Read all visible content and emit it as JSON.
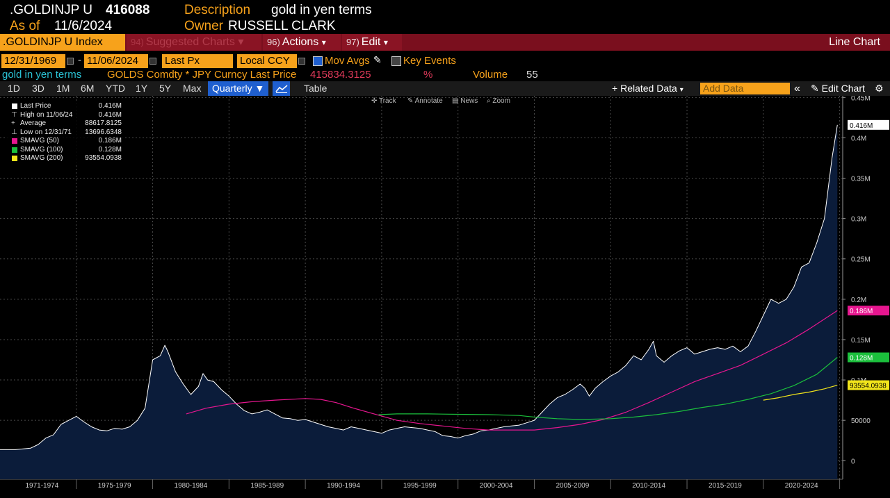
{
  "header": {
    "ticker": ".GOLDINJP U",
    "value": "416088",
    "desc_label": "Description",
    "desc_value": "gold in yen terms",
    "asof_label": "As of",
    "asof_value": "11/6/2024",
    "owner_label": "Owner",
    "owner_value": "RUSSELL CLARK"
  },
  "cmdbar": {
    "security": ".GOLDINJP U Index",
    "suggested_num": "94)",
    "suggested": "Suggested Charts",
    "actions_num": "96)",
    "actions": "Actions",
    "edit_num": "97)",
    "edit": "Edit",
    "chart_type": "Line Chart"
  },
  "settings": {
    "start_date": "12/31/1969",
    "end_date": "11/06/2024",
    "field": "Last Px",
    "currency": "Local CCY",
    "mov_avgs": "Mov Avgs",
    "key_events": "Key Events"
  },
  "secrow": {
    "name": "gold in yen terms",
    "formula": "GOLDS Comdty * JPY Curncy Last Price",
    "last_price": "415834.3125",
    "pct": "%",
    "volume_label": "Volume",
    "volume": "55"
  },
  "toolbar": {
    "periods": [
      "1D",
      "3D",
      "1M",
      "6M",
      "YTD",
      "1Y",
      "5Y",
      "Max"
    ],
    "frequency": "Quarterly",
    "table": "Table",
    "related": "Related Data",
    "add_data": "Add Data",
    "edit_chart": "Edit Chart",
    "tools": [
      "Track",
      "Annotate",
      "News",
      "Zoom"
    ]
  },
  "legend": [
    {
      "label": "Last Price",
      "value": "0.416M",
      "color": "#ffffff"
    },
    {
      "label": "High on 11/06/24",
      "value": "0.416M",
      "color": ""
    },
    {
      "label": "Average",
      "value": "88617.8125",
      "color": ""
    },
    {
      "label": "Low on 12/31/71",
      "value": "13696.6348",
      "color": ""
    },
    {
      "label": "SMAVG (50)",
      "value": "0.186M",
      "color": "#e6168f"
    },
    {
      "label": "SMAVG (100)",
      "value": "0.128M",
      "color": "#1bbf3c"
    },
    {
      "label": "SMAVG (200)",
      "value": "93554.0938",
      "color": "#f2e51b"
    }
  ],
  "chart_data": {
    "type": "area",
    "x_ticks": [
      "1971-1974",
      "1975-1979",
      "1980-1984",
      "1985-1989",
      "1990-1994",
      "1995-1999",
      "2000-2004",
      "2005-2009",
      "2010-2014",
      "2015-2019",
      "2020-2024"
    ],
    "y_ticks": [
      {
        "v": 0,
        "label": "0"
      },
      {
        "v": 50000,
        "label": "50000"
      },
      {
        "v": 100000,
        "label": "0.1M"
      },
      {
        "v": 150000,
        "label": "0.15M"
      },
      {
        "v": 200000,
        "label": "0.2M"
      },
      {
        "v": 250000,
        "label": "0.25M"
      },
      {
        "v": 300000,
        "label": "0.3M"
      },
      {
        "v": 350000,
        "label": "0.35M"
      },
      {
        "v": 400000,
        "label": "0.4M"
      },
      {
        "v": 450000,
        "label": "0.45M"
      }
    ],
    "ylim": [
      -23000,
      452000
    ],
    "xlim": [
      1970.0,
      2025.2
    ],
    "grid": true,
    "series": [
      {
        "name": "Last Price",
        "color": "#ffffff",
        "fill": "#0b1c3a",
        "points": [
          [
            1970.0,
            13700
          ],
          [
            1971.0,
            13700
          ],
          [
            1972.0,
            15500
          ],
          [
            1972.5,
            20000
          ],
          [
            1973.0,
            28000
          ],
          [
            1973.5,
            32000
          ],
          [
            1974.0,
            45000
          ],
          [
            1974.5,
            50000
          ],
          [
            1975.0,
            55000
          ],
          [
            1975.5,
            48000
          ],
          [
            1976.0,
            42000
          ],
          [
            1976.5,
            38000
          ],
          [
            1977.0,
            37000
          ],
          [
            1977.5,
            40000
          ],
          [
            1978.0,
            39000
          ],
          [
            1978.5,
            42000
          ],
          [
            1979.0,
            50000
          ],
          [
            1979.5,
            65000
          ],
          [
            1980.0,
            125000
          ],
          [
            1980.5,
            130000
          ],
          [
            1980.8,
            143000
          ],
          [
            1981.0,
            135000
          ],
          [
            1981.5,
            110000
          ],
          [
            1982.0,
            95000
          ],
          [
            1982.5,
            82000
          ],
          [
            1983.0,
            92000
          ],
          [
            1983.3,
            108000
          ],
          [
            1983.6,
            100000
          ],
          [
            1984.0,
            98000
          ],
          [
            1984.5,
            88000
          ],
          [
            1985.0,
            80000
          ],
          [
            1985.5,
            70000
          ],
          [
            1986.0,
            62000
          ],
          [
            1986.5,
            58000
          ],
          [
            1987.0,
            60000
          ],
          [
            1987.5,
            63000
          ],
          [
            1988.0,
            58000
          ],
          [
            1988.5,
            53000
          ],
          [
            1989.0,
            52000
          ],
          [
            1989.5,
            50000
          ],
          [
            1990.0,
            51000
          ],
          [
            1990.5,
            48000
          ],
          [
            1991.0,
            45000
          ],
          [
            1991.5,
            42000
          ],
          [
            1992.0,
            40000
          ],
          [
            1992.5,
            38000
          ],
          [
            1993.0,
            42000
          ],
          [
            1993.5,
            40000
          ],
          [
            1994.0,
            38000
          ],
          [
            1994.5,
            36000
          ],
          [
            1995.0,
            34000
          ],
          [
            1995.5,
            38000
          ],
          [
            1996.0,
            40000
          ],
          [
            1996.5,
            42000
          ],
          [
            1997.0,
            41000
          ],
          [
            1997.5,
            40000
          ],
          [
            1998.0,
            38000
          ],
          [
            1998.5,
            36000
          ],
          [
            1999.0,
            31000
          ],
          [
            1999.5,
            30000
          ],
          [
            2000.0,
            28000
          ],
          [
            2000.5,
            31000
          ],
          [
            2001.0,
            33000
          ],
          [
            2001.5,
            37000
          ],
          [
            2002.0,
            38000
          ],
          [
            2002.5,
            40000
          ],
          [
            2003.0,
            42000
          ],
          [
            2003.5,
            43000
          ],
          [
            2004.0,
            44000
          ],
          [
            2004.5,
            47000
          ],
          [
            2005.0,
            50000
          ],
          [
            2005.5,
            60000
          ],
          [
            2006.0,
            70000
          ],
          [
            2006.5,
            78000
          ],
          [
            2007.0,
            82000
          ],
          [
            2007.5,
            88000
          ],
          [
            2008.0,
            95000
          ],
          [
            2008.3,
            90000
          ],
          [
            2008.6,
            80000
          ],
          [
            2009.0,
            90000
          ],
          [
            2009.5,
            98000
          ],
          [
            2010.0,
            105000
          ],
          [
            2010.5,
            110000
          ],
          [
            2011.0,
            118000
          ],
          [
            2011.5,
            130000
          ],
          [
            2012.0,
            125000
          ],
          [
            2012.5,
            138000
          ],
          [
            2012.8,
            148000
          ],
          [
            2013.0,
            130000
          ],
          [
            2013.5,
            122000
          ],
          [
            2014.0,
            130000
          ],
          [
            2014.5,
            136000
          ],
          [
            2015.0,
            140000
          ],
          [
            2015.5,
            132000
          ],
          [
            2016.0,
            135000
          ],
          [
            2016.5,
            138000
          ],
          [
            2017.0,
            140000
          ],
          [
            2017.5,
            138000
          ],
          [
            2018.0,
            142000
          ],
          [
            2018.5,
            135000
          ],
          [
            2019.0,
            142000
          ],
          [
            2019.5,
            160000
          ],
          [
            2020.0,
            180000
          ],
          [
            2020.5,
            200000
          ],
          [
            2021.0,
            195000
          ],
          [
            2021.5,
            200000
          ],
          [
            2022.0,
            215000
          ],
          [
            2022.5,
            240000
          ],
          [
            2023.0,
            245000
          ],
          [
            2023.5,
            270000
          ],
          [
            2024.0,
            300000
          ],
          [
            2024.5,
            375000
          ],
          [
            2024.85,
            416000
          ]
        ]
      },
      {
        "name": "SMAVG (50)",
        "color": "#e6168f",
        "fill": "",
        "points": [
          [
            1982.2,
            58000
          ],
          [
            1983.5,
            65000
          ],
          [
            1985.0,
            70000
          ],
          [
            1986.5,
            73000
          ],
          [
            1988.0,
            75000
          ],
          [
            1990.0,
            77000
          ],
          [
            1991.0,
            76000
          ],
          [
            1992.0,
            72000
          ],
          [
            1993.0,
            66000
          ],
          [
            1994.5,
            58000
          ],
          [
            1996.0,
            50000
          ],
          [
            1997.5,
            46000
          ],
          [
            1999.0,
            43000
          ],
          [
            2000.5,
            40000
          ],
          [
            2002.0,
            38000
          ],
          [
            2004.0,
            38000
          ],
          [
            2005.0,
            38000
          ],
          [
            2006.5,
            41000
          ],
          [
            2008.0,
            45000
          ],
          [
            2009.5,
            51000
          ],
          [
            2011.0,
            60000
          ],
          [
            2012.5,
            72000
          ],
          [
            2014.0,
            85000
          ],
          [
            2015.5,
            98000
          ],
          [
            2017.0,
            108000
          ],
          [
            2018.5,
            118000
          ],
          [
            2020.0,
            132000
          ],
          [
            2021.5,
            146000
          ],
          [
            2023.0,
            163000
          ],
          [
            2024.85,
            186000
          ]
        ]
      },
      {
        "name": "SMAVG (100)",
        "color": "#1bbf3c",
        "fill": "",
        "points": [
          [
            1994.8,
            57000
          ],
          [
            1996.0,
            58000
          ],
          [
            1998.0,
            58000
          ],
          [
            2000.0,
            57500
          ],
          [
            2002.0,
            57000
          ],
          [
            2004.0,
            56000
          ],
          [
            2005.0,
            54000
          ],
          [
            2006.5,
            52000
          ],
          [
            2008.0,
            51000
          ],
          [
            2010.0,
            52000
          ],
          [
            2011.5,
            54000
          ],
          [
            2013.0,
            57000
          ],
          [
            2014.5,
            61000
          ],
          [
            2016.0,
            66000
          ],
          [
            2017.5,
            70000
          ],
          [
            2019.0,
            76000
          ],
          [
            2020.5,
            83000
          ],
          [
            2022.0,
            93000
          ],
          [
            2023.5,
            107000
          ],
          [
            2024.85,
            128000
          ]
        ]
      },
      {
        "name": "SMAVG (200)",
        "color": "#f2e51b",
        "fill": "",
        "points": [
          [
            2020.0,
            75000
          ],
          [
            2021.0,
            78000
          ],
          [
            2022.0,
            82000
          ],
          [
            2023.0,
            85000
          ],
          [
            2024.0,
            89000
          ],
          [
            2024.85,
            93554
          ]
        ]
      }
    ],
    "last_labels": [
      {
        "text": "0.416M",
        "v": 416000,
        "bg": "#ffffff",
        "fg": "#000000"
      },
      {
        "text": "0.186M",
        "v": 186000,
        "bg": "#e6168f",
        "fg": "#ffffff"
      },
      {
        "text": "0.128M",
        "v": 128000,
        "bg": "#1bbf3c",
        "fg": "#ffffff"
      },
      {
        "text": "93554.0938",
        "v": 93554,
        "bg": "#f2e51b",
        "fg": "#000000"
      }
    ]
  }
}
